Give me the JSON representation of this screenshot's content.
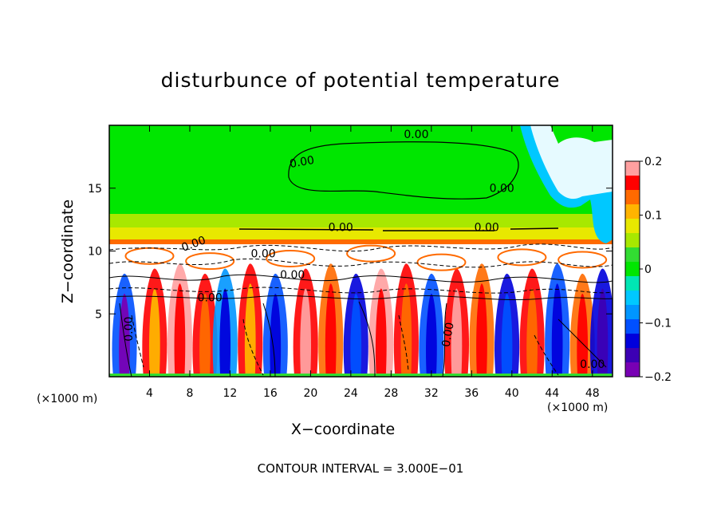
{
  "chart_data": {
    "type": "heatmap",
    "title": "disturbunce of potential temperature",
    "xlabel": "X−coordinate",
    "ylabel": "Z−coordinate",
    "x_unit": "(×1000 m)",
    "z_unit": "(×1000 m)",
    "xlim": [
      0,
      50
    ],
    "zlim": [
      0,
      20
    ],
    "x_ticks": [
      "4",
      "8",
      "12",
      "16",
      "20",
      "24",
      "28",
      "32",
      "36",
      "40",
      "44",
      "48"
    ],
    "z_ticks": [
      "5",
      "10",
      "15"
    ],
    "colorbar": {
      "range": [
        -0.2,
        0.2
      ],
      "tick_labels": [
        "0.2",
        "0.1",
        "0",
        "−0.1",
        "−0.2"
      ],
      "colors": [
        "#ffa0a0",
        "#ff0000",
        "#ff6a00",
        "#ffb400",
        "#e8e800",
        "#a8e800",
        "#32dc32",
        "#00e600",
        "#00e6b4",
        "#00c8ff",
        "#0096ff",
        "#0050ff",
        "#0000dc",
        "#3c00b4",
        "#7800b4"
      ]
    },
    "contour_labels": [
      "0.00",
      "0.00",
      "0.00",
      "0.00",
      "0.00",
      "0.00",
      "0.00",
      "0.00",
      "0.00",
      "0.00",
      "0.00",
      "0.00"
    ],
    "footnote": "CONTOUR INTERVAL = 3.000E−01"
  }
}
